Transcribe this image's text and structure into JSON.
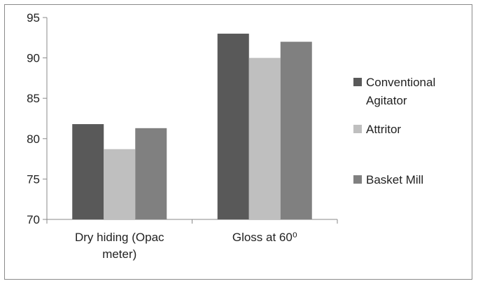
{
  "chart_data": {
    "type": "bar",
    "categories": [
      "Dry hiding (Opac meter)",
      "Gloss at 60⁰"
    ],
    "category_lines": [
      [
        "Dry hiding (Opac",
        "meter)"
      ],
      [
        "Gloss at 60⁰"
      ]
    ],
    "series": [
      {
        "name": "Conventional Agitator",
        "name_lines": [
          "Conventional",
          "Agitator"
        ],
        "values": [
          81.8,
          93
        ],
        "color": "#595959"
      },
      {
        "name": "Attritor",
        "name_lines": [
          "Attritor"
        ],
        "values": [
          78.7,
          90
        ],
        "color": "#bfbfbf"
      },
      {
        "name": "Basket Mill",
        "name_lines": [
          "Basket Mill"
        ],
        "values": [
          81.3,
          92
        ],
        "color": "#808080"
      }
    ],
    "yticks": [
      70,
      75,
      80,
      85,
      90,
      95
    ],
    "ylim": [
      70,
      95
    ],
    "grid": false,
    "legend": "right",
    "title": "",
    "xlabel": "",
    "ylabel": ""
  }
}
